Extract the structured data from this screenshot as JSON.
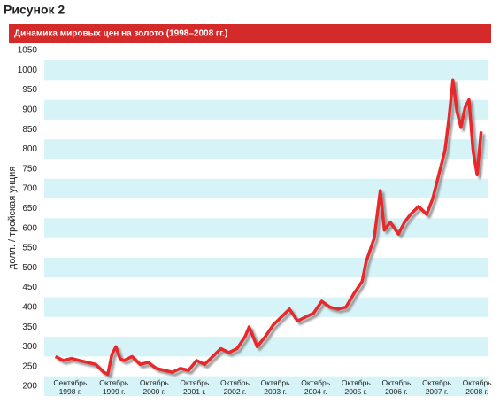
{
  "figure_label": "Рисунок 2",
  "chart_data": {
    "type": "line",
    "title": "Динамика мировых цен на золото (1998–2008 гг.)",
    "y_label": "долл. / тройская унция",
    "x": [
      1998.3,
      1998.5,
      1998.7,
      1998.9,
      1999.1,
      1999.3,
      1999.5,
      1999.6,
      1999.7,
      1999.8,
      1999.9,
      2000.0,
      2000.2,
      2000.4,
      2000.6,
      2000.8,
      2001.0,
      2001.2,
      2001.4,
      2001.6,
      2001.8,
      2002.0,
      2002.2,
      2002.4,
      2002.6,
      2002.8,
      2003.0,
      2003.1,
      2003.3,
      2003.5,
      2003.7,
      2003.9,
      2004.1,
      2004.3,
      2004.5,
      2004.7,
      2004.9,
      2005.1,
      2005.3,
      2005.5,
      2005.7,
      2005.9,
      2006.0,
      2006.2,
      2006.35,
      2006.45,
      2006.6,
      2006.8,
      2006.95,
      2007.1,
      2007.3,
      2007.5,
      2007.65,
      2007.8,
      2007.95,
      2008.05,
      2008.15,
      2008.25,
      2008.35,
      2008.45,
      2008.55,
      2008.65,
      2008.75,
      2008.85
    ],
    "series": [
      {
        "color": "#e8282a",
        "values": [
          300,
          290,
          295,
          290,
          285,
          280,
          260,
          255,
          305,
          325,
          295,
          290,
          300,
          280,
          285,
          270,
          265,
          260,
          270,
          265,
          290,
          280,
          300,
          320,
          310,
          320,
          350,
          375,
          325,
          350,
          380,
          400,
          420,
          390,
          400,
          410,
          440,
          425,
          420,
          425,
          460,
          490,
          540,
          600,
          720,
          620,
          640,
          610,
          640,
          660,
          680,
          660,
          700,
          760,
          820,
          900,
          1000,
          920,
          880,
          930,
          950,
          820,
          760,
          870
        ]
      }
    ],
    "xlim": [
      1998.2,
      2008.9
    ],
    "xticks": [
      {
        "value": 1998.67,
        "label": "Сентябрь\n1998 г."
      },
      {
        "value": 1999.75,
        "label": "Октябрь\n1999 г."
      },
      {
        "value": 2000.75,
        "label": "Октябрь\n2000 г."
      },
      {
        "value": 2001.75,
        "label": "Октябрь\n2001 г."
      },
      {
        "value": 2002.75,
        "label": "Октябрь\n2002 г."
      },
      {
        "value": 2003.75,
        "label": "Октябрь\n2003 г."
      },
      {
        "value": 2004.75,
        "label": "Октябрь\n2004 г."
      },
      {
        "value": 2005.75,
        "label": "Октябрь\n2005 г."
      },
      {
        "value": 2006.75,
        "label": "Октябрь\n2006 г."
      },
      {
        "value": 2007.75,
        "label": "Октябрь\n2007 г."
      },
      {
        "value": 2008.75,
        "label": "Октябрь\n2008 г."
      }
    ],
    "ylim": [
      200,
      1050
    ],
    "yticks": [
      200,
      250,
      300,
      350,
      400,
      450,
      500,
      550,
      600,
      650,
      700,
      750,
      800,
      850,
      900,
      950,
      1000,
      1050
    ],
    "band_color": "#d6f4f8"
  }
}
